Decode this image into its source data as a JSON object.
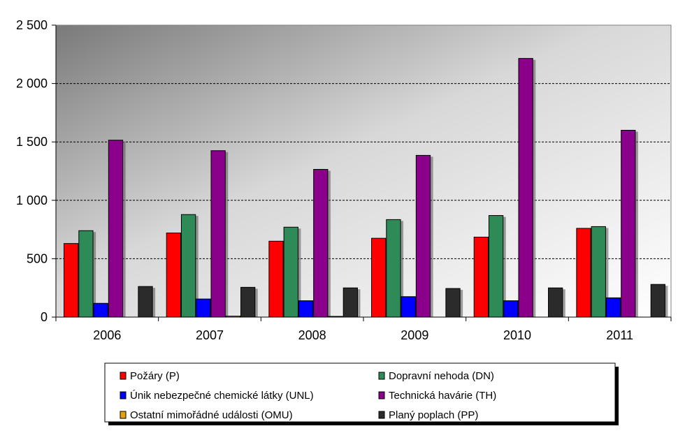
{
  "chart_data": {
    "type": "bar",
    "categories": [
      "2006",
      "2007",
      "2008",
      "2009",
      "2010",
      "2011"
    ],
    "series": [
      {
        "name": "Požáry (P)",
        "color": "#ff0000",
        "values": [
          630,
          720,
          650,
          675,
          685,
          760
        ]
      },
      {
        "name": "Dopravní nehoda (DN)",
        "color": "#2e8b57",
        "values": [
          740,
          878,
          770,
          835,
          870,
          775
        ]
      },
      {
        "name": "Únik nebezpečné chemické látky (UNL)",
        "color": "#0000ff",
        "values": [
          118,
          155,
          140,
          175,
          140,
          165
        ]
      },
      {
        "name": "Technická havárie (TH)",
        "color": "#8b008b",
        "values": [
          1515,
          1425,
          1265,
          1385,
          2215,
          1600
        ]
      },
      {
        "name": "Ostatní mimořádné události (OMU)",
        "color": "#e5a00a",
        "values": [
          0,
          8,
          6,
          0,
          0,
          0
        ]
      },
      {
        "name": "Planý poplach (PP)",
        "color": "#2b2b2b",
        "values": [
          262,
          255,
          250,
          245,
          250,
          280
        ]
      }
    ],
    "ylim": [
      0,
      2500
    ],
    "yticks": [
      0,
      500,
      1000,
      1500,
      2000,
      2500
    ],
    "ytick_labels": [
      "0",
      "500",
      "1 000",
      "1 500",
      "2 000",
      "2 500"
    ],
    "grid": true,
    "legend_position": "bottom"
  }
}
